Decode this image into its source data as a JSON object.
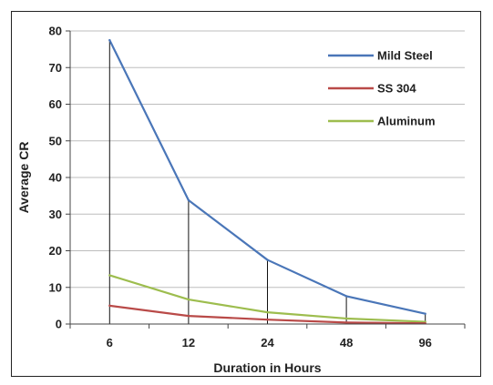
{
  "chart_data": {
    "type": "line",
    "categories": [
      "6",
      "12",
      "24",
      "48",
      "96"
    ],
    "series": [
      {
        "name": "Mild Steel",
        "values": [
          77.5,
          33.8,
          17.5,
          7.6,
          2.8
        ],
        "color": "#4a76b8"
      },
      {
        "name": "SS 304",
        "values": [
          5.0,
          2.2,
          1.2,
          0.4,
          0.2
        ],
        "color": "#b94a48"
      },
      {
        "name": "Aluminum",
        "values": [
          13.3,
          6.7,
          3.2,
          1.5,
          0.6
        ],
        "color": "#9dbd4e"
      }
    ],
    "title": "",
    "xlabel": "Duration in Hours",
    "ylabel": "Average CR",
    "ylim": [
      0,
      80
    ],
    "yticks": [
      "0",
      "10",
      "20",
      "30",
      "40",
      "50",
      "60",
      "70",
      "80"
    ],
    "grid": true,
    "drop_lines": true,
    "legend_position": "top-right"
  }
}
